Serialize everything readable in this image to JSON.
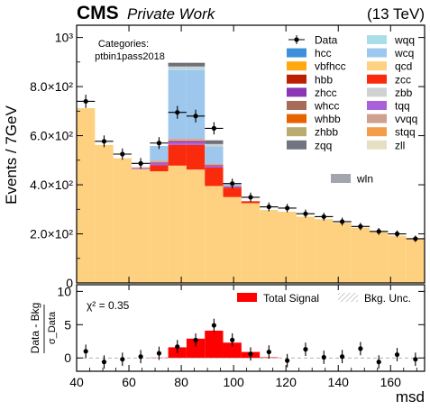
{
  "header": {
    "experiment": "CMS",
    "subtitle": "Private Work",
    "energy": "(13 TeV)"
  },
  "categories_label": "Categories:",
  "category_name": "ptbin1pass2018",
  "chi2_text": "χ² = 0.35",
  "chart_data": [
    {
      "type": "bar",
      "stacked": true,
      "x_edges": [
        40,
        47,
        54,
        61,
        68,
        75,
        82,
        89,
        96,
        103,
        110,
        117,
        124,
        131,
        138,
        145,
        152,
        159,
        166,
        173
      ],
      "xlim": [
        40,
        173
      ],
      "ylim": [
        0,
        1050
      ],
      "ylabel": "Events / 7GeV",
      "yticks": [
        {
          "value": 0,
          "label": "0"
        },
        {
          "value": 200,
          "label": "2.0×10²"
        },
        {
          "value": 400,
          "label": "4.0×10²"
        },
        {
          "value": 600,
          "label": "6.0×10²"
        },
        {
          "value": 800,
          "label": "8.0×10²"
        },
        {
          "value": 1000,
          "label": "10³"
        }
      ],
      "series": [
        {
          "name": "zll",
          "color": "#e7dfc2",
          "values": [
            0,
            0,
            0,
            0,
            0,
            0,
            0,
            0,
            0,
            0,
            0,
            0,
            0,
            0,
            0,
            0,
            0,
            0,
            0
          ]
        },
        {
          "name": "qcd",
          "color": "#fdd17f",
          "values": [
            712,
            562,
            508,
            464,
            455,
            478,
            462,
            395,
            350,
            325,
            297,
            290,
            270,
            260,
            245,
            225,
            210,
            192,
            180
          ]
        },
        {
          "name": "zcc",
          "color": "#fa2a0c",
          "values": [
            0,
            0,
            0,
            0,
            24,
            84,
            100,
            75,
            38,
            8,
            0,
            0,
            0,
            0,
            0,
            0,
            0,
            0,
            0
          ]
        },
        {
          "name": "tqq",
          "color": "#a960da",
          "values": [
            0,
            0,
            0,
            3,
            8,
            10,
            10,
            6,
            3,
            0,
            0,
            0,
            0,
            0,
            0,
            0,
            0,
            0,
            0
          ]
        },
        {
          "name": "zhcc",
          "color": "#8a36b5",
          "values": [
            0,
            0,
            0,
            2,
            4,
            6,
            6,
            4,
            2,
            0,
            0,
            0,
            0,
            0,
            0,
            0,
            0,
            0,
            0
          ]
        },
        {
          "name": "stqq",
          "color": "#f39c4a",
          "values": [
            0,
            0,
            0,
            2,
            4,
            5,
            5,
            3,
            2,
            0,
            0,
            0,
            0,
            0,
            0,
            0,
            0,
            0,
            0
          ]
        },
        {
          "name": "vvqq",
          "color": "#cfa090",
          "values": [
            0,
            0,
            0,
            0,
            3,
            4,
            4,
            3,
            0,
            0,
            0,
            0,
            0,
            0,
            0,
            0,
            0,
            0,
            0
          ]
        },
        {
          "name": "wcq",
          "color": "#9ec7ed",
          "values": [
            0,
            0,
            0,
            0,
            60,
            280,
            280,
            70,
            8,
            0,
            0,
            0,
            0,
            0,
            0,
            0,
            0,
            0,
            0
          ]
        },
        {
          "name": "wqq",
          "color": "#a9dde7",
          "values": [
            0,
            0,
            0,
            0,
            0,
            5,
            5,
            0,
            0,
            0,
            0,
            0,
            0,
            0,
            0,
            0,
            0,
            0,
            0
          ]
        },
        {
          "name": "zbb",
          "color": "#cfd2d3",
          "values": [
            0,
            0,
            0,
            0,
            0,
            10,
            10,
            10,
            0,
            0,
            0,
            0,
            0,
            0,
            0,
            0,
            0,
            0,
            0
          ]
        },
        {
          "name": "zqq",
          "color": "#6e7079",
          "values": [
            0,
            0,
            0,
            0,
            0,
            15,
            15,
            15,
            0,
            0,
            0,
            0,
            0,
            0,
            0,
            0,
            0,
            0,
            0
          ]
        }
      ],
      "data": {
        "name": "Data",
        "x": [
          43.5,
          50.5,
          57.5,
          64.5,
          71.5,
          78.5,
          85.5,
          92.5,
          99.5,
          106.5,
          113.5,
          120.5,
          127.5,
          134.5,
          141.5,
          148.5,
          155.5,
          162.5,
          169.5
        ],
        "y": [
          740,
          577,
          525,
          487,
          570,
          695,
          680,
          630,
          405,
          349,
          310,
          305,
          282,
          270,
          250,
          230,
          210,
          200,
          180
        ],
        "err": [
          27,
          24,
          23,
          22,
          24,
          26,
          26,
          25,
          20,
          19,
          18,
          17,
          17,
          16,
          16,
          15,
          14,
          14,
          13
        ]
      },
      "legend": {
        "placement": "top-right",
        "columns": [
          [
            {
              "label": "Data",
              "kind": "marker"
            },
            {
              "label": "hcc",
              "color": "#3f90da"
            },
            {
              "label": "vbfhcc",
              "color": "#ffa90e"
            },
            {
              "label": "hbb",
              "color": "#bd1f01"
            },
            {
              "label": "zhcc",
              "color": "#8a36b5"
            },
            {
              "label": "whcc",
              "color": "#a96b59"
            },
            {
              "label": "whbb",
              "color": "#e76300"
            },
            {
              "label": "zhbb",
              "color": "#b9ac70"
            },
            {
              "label": "zqq",
              "color": "#717581"
            }
          ],
          [
            {
              "label": "wqq",
              "color": "#a9dde7"
            },
            {
              "label": "wcq",
              "color": "#9ec7ed"
            },
            {
              "label": "qcd",
              "color": "#fdd17f"
            },
            {
              "label": "zcc",
              "color": "#fa2a0c"
            },
            {
              "label": "zbb",
              "color": "#cfd2d3"
            },
            {
              "label": "tqq",
              "color": "#a960da"
            },
            {
              "label": "vvqq",
              "color": "#cfa090"
            },
            {
              "label": "stqq",
              "color": "#f39c4a"
            },
            {
              "label": "zll",
              "color": "#e7dfc2"
            }
          ]
        ],
        "extra": {
          "label": "wln",
          "color": "#a2a5ab"
        }
      }
    },
    {
      "type": "bar",
      "x_edges": [
        40,
        47,
        54,
        61,
        68,
        75,
        82,
        89,
        96,
        103,
        110,
        117,
        124,
        131,
        138,
        145,
        152,
        159,
        166,
        173
      ],
      "xlim": [
        40,
        173
      ],
      "ylim": [
        -2,
        11
      ],
      "xlabel": "msd",
      "ylabel": "Data - Bkg",
      "ylabel_denominator": "σ_Data",
      "xticks": [
        40,
        60,
        80,
        100,
        120,
        140,
        160
      ],
      "yticks": [
        0,
        5,
        10
      ],
      "signal": {
        "name": "Total Signal",
        "color": "#ff0000",
        "values": [
          0,
          0,
          0,
          0,
          0.05,
          1.6,
          2.9,
          4.1,
          2.3,
          0.9,
          0.1,
          0,
          0,
          0,
          0,
          0,
          0,
          0,
          0
        ]
      },
      "bkg_unc": {
        "name": "Bkg. Unc."
      },
      "pulls": {
        "x": [
          43.5,
          50.5,
          57.5,
          64.5,
          71.5,
          78.5,
          85.5,
          92.5,
          99.5,
          106.5,
          113.5,
          120.5,
          127.5,
          134.5,
          141.5,
          148.5,
          155.5,
          162.5,
          169.5
        ],
        "y": [
          1.0,
          -0.6,
          -0.2,
          0.2,
          0.7,
          1.7,
          2.7,
          4.9,
          2.7,
          0.6,
          0.9,
          -0.4,
          1.3,
          0.1,
          0.2,
          1.4,
          -0.6,
          0.5,
          -0.2
        ],
        "err": [
          1,
          1,
          1,
          1,
          1,
          1,
          1,
          1,
          1,
          1,
          1,
          1,
          1,
          1,
          1,
          1,
          1,
          1,
          1
        ]
      },
      "legend": {
        "placement": "top-right"
      }
    }
  ]
}
